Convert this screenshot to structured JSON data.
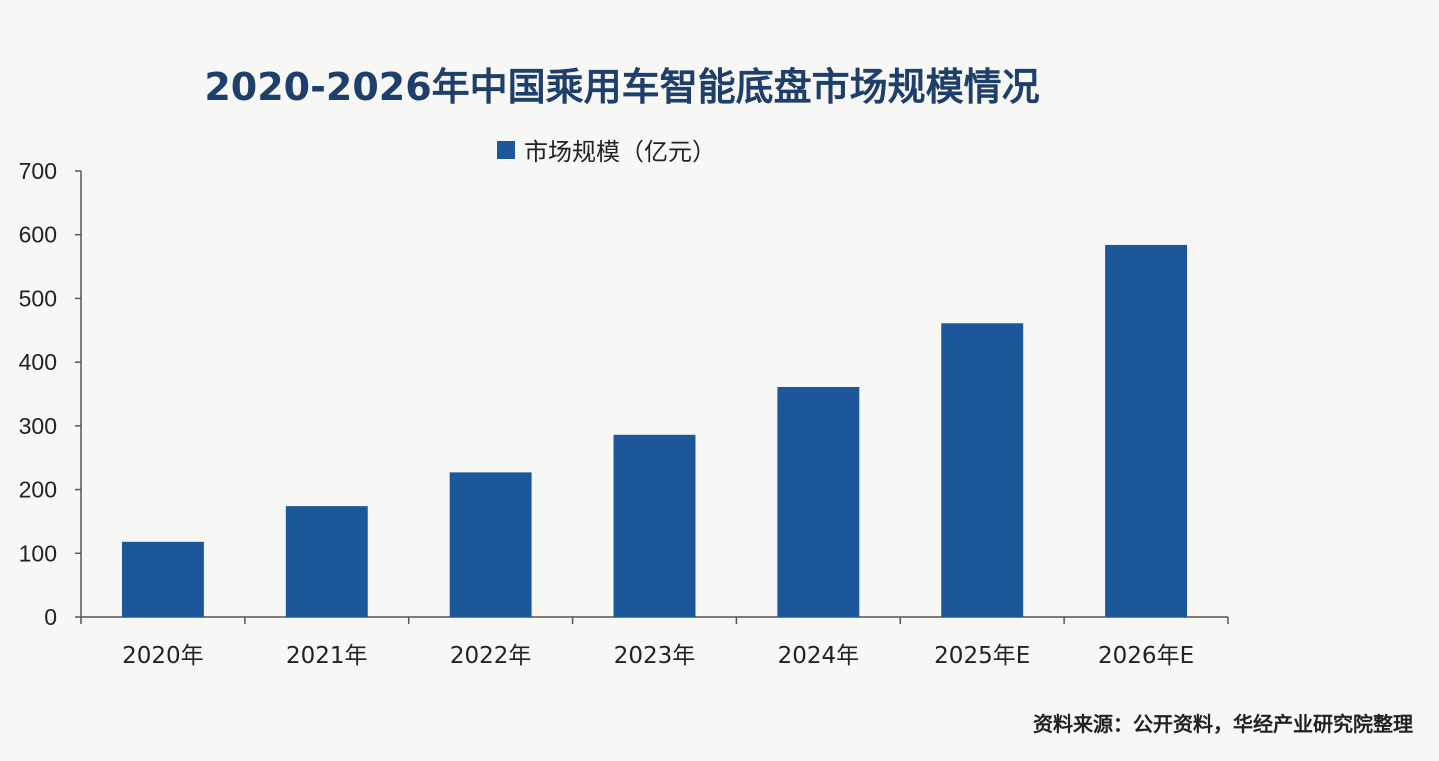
{
  "chart_data": {
    "type": "bar",
    "title": "2020-2026年中国乘用车智能底盘市场规模情况",
    "categories": [
      "2020年",
      "2021年",
      "2022年",
      "2023年",
      "2024年",
      "2025年E",
      "2026年E"
    ],
    "series": [
      {
        "name": "市场规模（亿元）",
        "values": [
          118,
          174,
          227,
          286,
          361,
          461,
          584
        ],
        "color": "#1c5799"
      }
    ],
    "ylim": [
      0,
      700
    ],
    "yticks": [
      0,
      100,
      200,
      300,
      400,
      500,
      600,
      700
    ],
    "grid": false,
    "legend": "top-center",
    "source": "资料来源：公开资料，华经产业研究院整理"
  }
}
